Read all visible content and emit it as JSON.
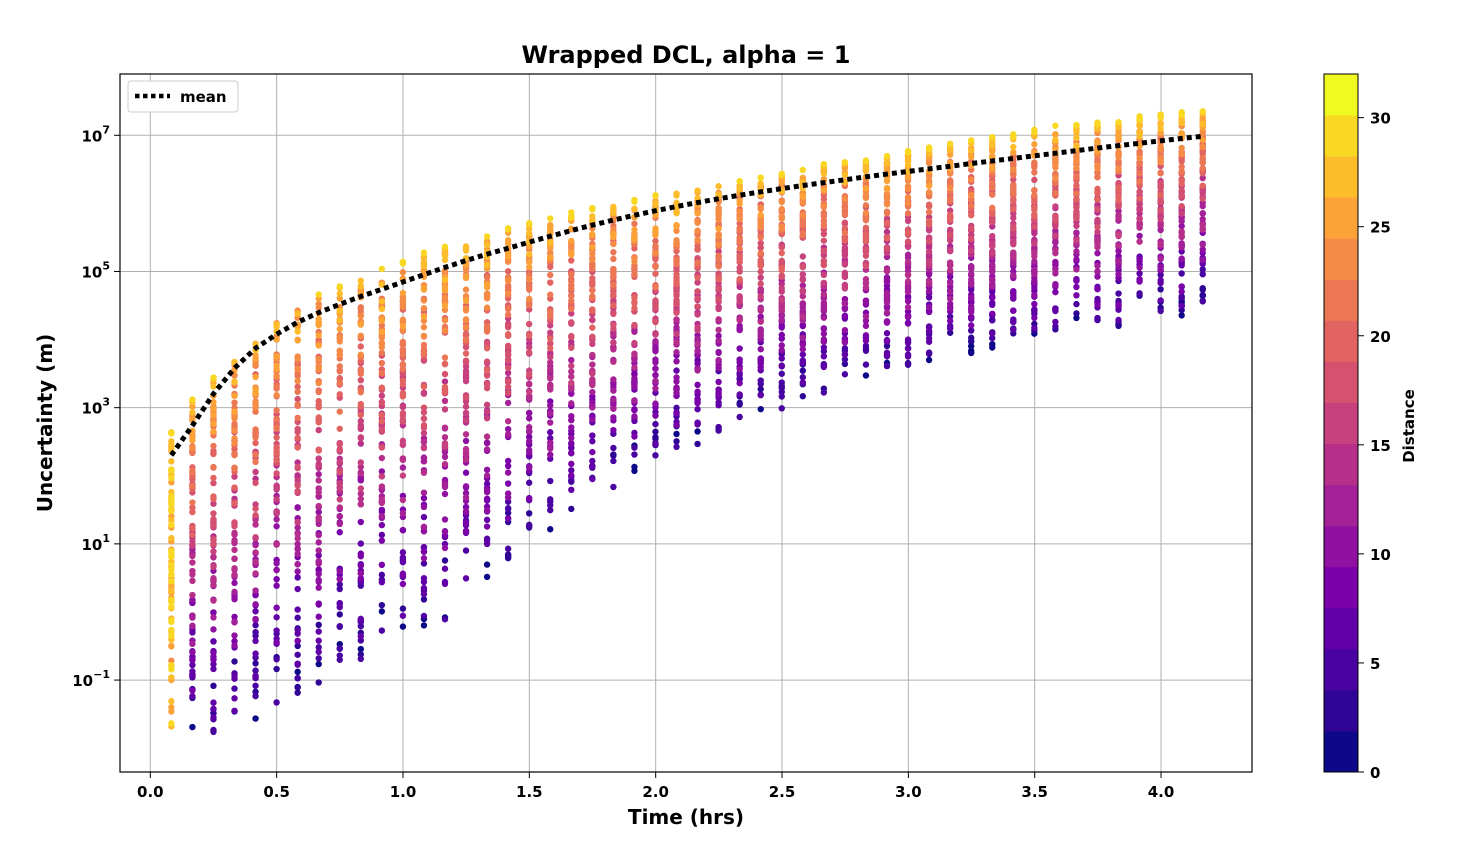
{
  "chart_data": {
    "type": "scatter",
    "title": "Wrapped DCL, alpha = 1",
    "xlabel": "Time (hrs)",
    "ylabel": "Uncertainty (m)",
    "xlim": [
      -0.12,
      4.36
    ],
    "ylim_log10": [
      -2.35,
      7.9
    ],
    "yscale": "log",
    "grid": true,
    "x_ticks": [
      "0.0",
      "0.5",
      "1.0",
      "1.5",
      "2.0",
      "2.5",
      "3.0",
      "3.5",
      "4.0"
    ],
    "y_ticks": [
      {
        "base": "10",
        "exp": "−1",
        "log10": -1
      },
      {
        "base": "10",
        "exp": "1",
        "log10": 1
      },
      {
        "base": "10",
        "exp": "3",
        "log10": 3
      },
      {
        "base": "10",
        "exp": "5",
        "log10": 5
      },
      {
        "base": "10",
        "exp": "7",
        "log10": 7
      }
    ],
    "legend": {
      "placement": "top-left",
      "entries": [
        {
          "label": "mean",
          "style": "dotted",
          "color": "#000000"
        }
      ]
    },
    "time_step_hrs": 0.0833,
    "n_time_steps": 50,
    "mean_series": {
      "name": "mean",
      "x": [
        0.083,
        0.167,
        0.25,
        0.333,
        0.417,
        0.5,
        0.583,
        0.667,
        0.75,
        0.833,
        0.917,
        1.0,
        1.083,
        1.167,
        1.25,
        1.333,
        1.417,
        1.5,
        1.583,
        1.667,
        1.75,
        1.833,
        1.917,
        2.0,
        2.083,
        2.167,
        2.25,
        2.333,
        2.417,
        2.5,
        2.583,
        2.667,
        2.75,
        2.833,
        2.917,
        3.0,
        3.083,
        3.167,
        3.25,
        3.333,
        3.417,
        3.5,
        3.583,
        3.667,
        3.75,
        3.833,
        3.917,
        4.0,
        4.083,
        4.167
      ],
      "y": [
        200,
        550,
        1600,
        3800,
        7500,
        12000,
        18000,
        25000,
        33000,
        43000,
        55000,
        70000,
        90000,
        115000,
        145000,
        180000,
        220000,
        270000,
        330000,
        400000,
        480000,
        570000,
        670000,
        780000,
        900000,
        1030000,
        1170000,
        1320000,
        1480000,
        1650000,
        1830000,
        2020000,
        2230000,
        2460000,
        2700000,
        2950000,
        3220000,
        3520000,
        3850000,
        4200000,
        4580000,
        5000000,
        5450000,
        5950000,
        6500000,
        7050000,
        7650000,
        8300000,
        9000000,
        9700000
      ]
    },
    "columns": {
      "x_start": 0.0833,
      "dx": 0.0833,
      "count": 50,
      "points_per_column": 85,
      "upper_log10": [
        2.65,
        3.15,
        3.45,
        3.8,
        4.1,
        4.35,
        4.55,
        4.68,
        4.8,
        4.92,
        5.05,
        5.15,
        5.28,
        5.38,
        5.45,
        5.55,
        5.65,
        5.72,
        5.8,
        5.88,
        5.94,
        6.0,
        6.06,
        6.12,
        6.18,
        6.23,
        6.28,
        6.33,
        6.38,
        6.44,
        6.52,
        6.58,
        6.62,
        6.66,
        6.72,
        6.78,
        6.84,
        6.9,
        6.95,
        7.0,
        7.05,
        7.1,
        7.14,
        7.18,
        7.2,
        7.24,
        7.28,
        7.31,
        7.34,
        7.38
      ],
      "lower_log10": [
        -1.8,
        -1.8,
        -1.9,
        -1.7,
        -1.6,
        -1.4,
        -1.3,
        -1.1,
        -0.8,
        -0.75,
        -0.6,
        -0.5,
        -0.3,
        -0.2,
        0.2,
        0.4,
        0.7,
        1.0,
        1.1,
        1.4,
        1.6,
        1.8,
        2.0,
        2.1,
        2.3,
        2.4,
        2.6,
        2.8,
        2.9,
        2.9,
        3.1,
        3.2,
        3.3,
        3.4,
        3.5,
        3.5,
        3.6,
        3.65,
        3.7,
        3.75,
        3.85,
        3.9,
        4.0,
        4.05,
        4.1,
        4.15,
        4.25,
        4.3,
        4.35,
        4.4
      ]
    },
    "colorbar": {
      "label": "Distance",
      "min": 0,
      "max": 32,
      "ticks": [
        0,
        5,
        10,
        15,
        20,
        25,
        30
      ],
      "colormap": "plasma",
      "bands": 15,
      "colors": [
        "#0d0887",
        "#2f0596",
        "#4903a0",
        "#6200a7",
        "#7a02a8",
        "#9010a2",
        "#a42197",
        "#b6308b",
        "#c6417d",
        "#d45270",
        "#e16462",
        "#ec7754",
        "#f58c46",
        "#fca338",
        "#fdbd2b",
        "#f9d823",
        "#f0f921"
      ]
    }
  }
}
